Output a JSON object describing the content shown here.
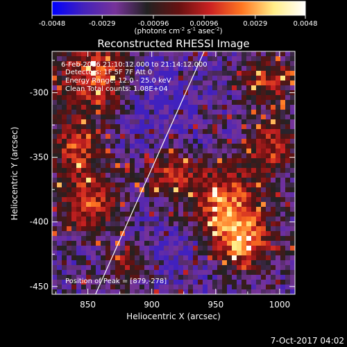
{
  "colorbar": {
    "ticks": [
      "-0.0048",
      "-0.0029",
      "-0.00096",
      "0.00096",
      "0.0029",
      "0.0048"
    ],
    "units_prefix": "(photons cm",
    "units_exp1": "-2",
    "units_mid": " s",
    "units_exp2": "-1",
    "units_mid2": " asec",
    "units_exp3": "-2",
    "units_suffix": ")",
    "gradient": [
      "#0000ff",
      "#4422bb",
      "#773399",
      "#222222",
      "#661111",
      "#cc2222",
      "#ff7722",
      "#ffee88",
      "#ffffff"
    ]
  },
  "chart_data": {
    "type": "heatmap",
    "title": "Reconstructed RHESSI Image",
    "xlabel": "Heliocentric X (arcsec)",
    "ylabel": "Heliocentric Y (arcsec)",
    "xlim": [
      822,
      1012
    ],
    "ylim": [
      -456,
      -268
    ],
    "xticks": [
      850,
      900,
      950,
      1000
    ],
    "yticks": [
      -300,
      -350,
      -400,
      -450
    ],
    "color_range": [
      -0.0048,
      0.0048
    ],
    "annotations": {
      "line1": "6-Feb-2016 21:10:12.000 to 21:14:12.000",
      "line2": "Detectors: 1F 5F 7F  Att 0",
      "line3": "Energy Range: 12.0 - 25.0 keV",
      "line4": "Clean    Total counts: 1.08E+04",
      "peak": "Position of Peak = [879,-278]"
    },
    "limb_line": [
      [
        856,
        -456
      ],
      [
        941,
        -268
      ]
    ]
  },
  "timestamp": "7-Oct-2017 04:02"
}
